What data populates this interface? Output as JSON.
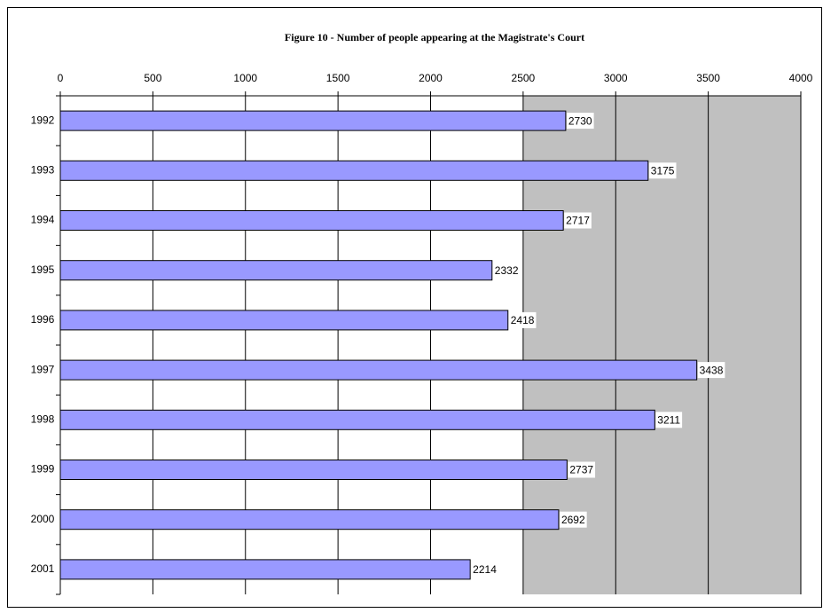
{
  "chart_data": {
    "type": "hbar",
    "title": "Figure 10 - Number of people appearing at the Magistrate's Court",
    "categories": [
      "1992",
      "1993",
      "1994",
      "1995",
      "1996",
      "1997",
      "1998",
      "1999",
      "2000",
      "2001"
    ],
    "values": [
      2730,
      3175,
      2717,
      2332,
      2418,
      3438,
      3211,
      2737,
      2692,
      2214
    ],
    "color": "#9999ff",
    "xlim": [
      0,
      4000
    ],
    "xticks": [
      0,
      500,
      1000,
      1500,
      2000,
      2500,
      3000,
      3500,
      4000
    ],
    "grid": true
  }
}
